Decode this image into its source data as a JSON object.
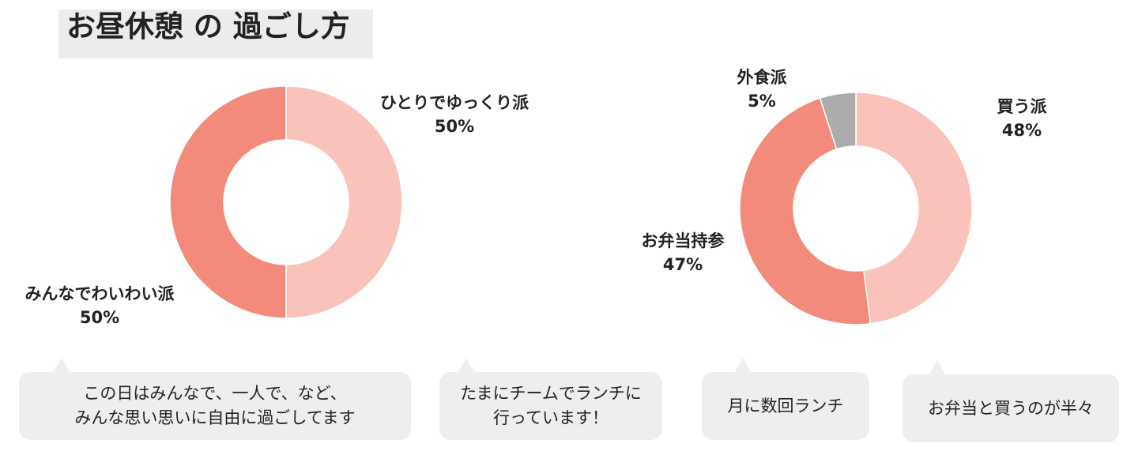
{
  "title": "お昼休憩 の 過ごし方",
  "colors": {
    "light": "#f9c3bb",
    "dark": "#f28b7c",
    "gray": "#acacac",
    "title_bg": "#ececec",
    "bubble_bg": "#eeeeee"
  },
  "chart_data": [
    {
      "type": "pie",
      "slices": [
        {
          "label": "ひとりでゆっくり派",
          "value": 50,
          "value_label": "50%",
          "color": "#f9c3bb"
        },
        {
          "label": "みんなでわいわい派",
          "value": 50,
          "value_label": "50%",
          "color": "#f28b7c"
        }
      ],
      "comment": [
        "この日はみんなで、一人で、など、",
        "みんな思い思いに自由に過ごしてます"
      ],
      "comment2": [
        "たまにチームでランチに",
        "行っています！"
      ]
    },
    {
      "type": "pie",
      "slices": [
        {
          "label": "買う派",
          "value": 48,
          "value_label": "48%",
          "color": "#f9c3bb"
        },
        {
          "label": "お弁当持参",
          "value": 47,
          "value_label": "47%",
          "color": "#f28b7c"
        },
        {
          "label": "外食派",
          "value": 5,
          "value_label": "5%",
          "color": "#acacac"
        }
      ],
      "comment": [
        "月に数回ランチ"
      ],
      "comment2": [
        "お弁当と買うのが半々"
      ]
    }
  ]
}
